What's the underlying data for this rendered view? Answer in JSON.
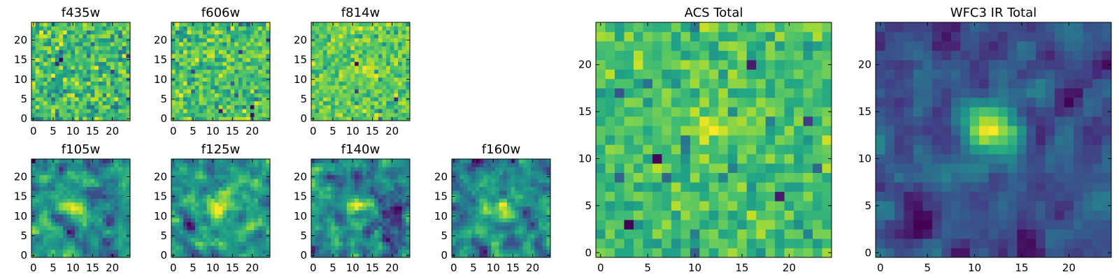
{
  "chart_data": [
    {
      "type": "heatmap",
      "title": "f435w",
      "xticks": [
        0,
        5,
        10,
        15,
        20
      ],
      "yticks": [
        0,
        5,
        10,
        15,
        20
      ],
      "xlim": [
        -0.5,
        24.5
      ],
      "ylim": [
        -0.5,
        24.5
      ],
      "grid_size": 25,
      "colormap": "viridis",
      "source_blob": null,
      "noise": "pixel"
    },
    {
      "type": "heatmap",
      "title": "f606w",
      "xticks": [
        0,
        5,
        10,
        15,
        20
      ],
      "yticks": [
        0,
        5,
        10,
        15,
        20
      ],
      "xlim": [
        -0.5,
        24.5
      ],
      "ylim": [
        -0.5,
        24.5
      ],
      "grid_size": 25,
      "colormap": "viridis",
      "source_blob": null,
      "noise": "pixel"
    },
    {
      "type": "heatmap",
      "title": "f814w",
      "xticks": [
        0,
        5,
        10,
        15,
        20
      ],
      "yticks": [
        0,
        5,
        10,
        15,
        20
      ],
      "xlim": [
        -0.5,
        24.5
      ],
      "ylim": [
        -0.5,
        24.5
      ],
      "grid_size": 25,
      "colormap": "viridis",
      "source_blob": {
        "x": 13,
        "y": 12,
        "sigma": 1.5,
        "amplitude": 1.0
      },
      "noise": "pixel"
    },
    {
      "type": "heatmap",
      "title": "f105w",
      "xticks": [
        0,
        5,
        10,
        15,
        20
      ],
      "yticks": [
        0,
        5,
        10,
        15,
        20
      ],
      "xlim": [
        -0.5,
        24.5
      ],
      "ylim": [
        -0.5,
        24.5
      ],
      "grid_size": 25,
      "colormap": "viridis",
      "source_blob": {
        "x": 12,
        "y": 12,
        "sigma": 2.0,
        "amplitude": 0.5
      },
      "noise": "smooth"
    },
    {
      "type": "heatmap",
      "title": "f125w",
      "xticks": [
        0,
        5,
        10,
        15,
        20
      ],
      "yticks": [
        0,
        5,
        10,
        15,
        20
      ],
      "xlim": [
        -0.5,
        24.5
      ],
      "ylim": [
        -0.5,
        24.5
      ],
      "grid_size": 25,
      "colormap": "viridis",
      "source_blob": {
        "x": 13,
        "y": 12,
        "sigma": 2.0,
        "amplitude": 0.7
      },
      "noise": "smooth"
    },
    {
      "type": "heatmap",
      "title": "f140w",
      "xticks": [
        0,
        5,
        10,
        15,
        20
      ],
      "yticks": [
        0,
        5,
        10,
        15,
        20
      ],
      "xlim": [
        -0.5,
        24.5
      ],
      "ylim": [
        -0.5,
        24.5
      ],
      "grid_size": 25,
      "colormap": "viridis",
      "source_blob": {
        "x": 12,
        "y": 12,
        "sigma": 2.0,
        "amplitude": 0.5
      },
      "noise": "smooth"
    },
    {
      "type": "heatmap",
      "title": "f160w",
      "xticks": [
        0,
        5,
        10,
        15,
        20
      ],
      "yticks": [
        0,
        5,
        10,
        15,
        20
      ],
      "xlim": [
        -0.5,
        24.5
      ],
      "ylim": [
        -0.5,
        24.5
      ],
      "grid_size": 25,
      "colormap": "viridis",
      "source_blob": {
        "x": 13,
        "y": 12,
        "sigma": 2.0,
        "amplitude": 0.5
      },
      "noise": "smooth"
    },
    {
      "type": "heatmap",
      "title": "ACS Total",
      "xticks": [
        0,
        5,
        10,
        15,
        20
      ],
      "yticks": [
        0,
        5,
        10,
        15,
        20
      ],
      "xlim": [
        -0.5,
        24.5
      ],
      "ylim": [
        -0.5,
        24.5
      ],
      "grid_size": 25,
      "colormap": "viridis",
      "source_blob": {
        "x": 12,
        "y": 13,
        "sigma": 1.8,
        "amplitude": 0.8
      },
      "noise": "pixel"
    },
    {
      "type": "heatmap",
      "title": "WFC3 IR Total",
      "xticks": [
        0,
        5,
        10,
        15,
        20
      ],
      "yticks": [
        0,
        5,
        10,
        15,
        20
      ],
      "xlim": [
        -0.5,
        24.5
      ],
      "ylim": [
        -0.5,
        24.5
      ],
      "grid_size": 25,
      "colormap": "viridis",
      "source_blob": {
        "x": 12,
        "y": 13,
        "sigma": 2.0,
        "amplitude": 1.6
      },
      "noise": "smooth"
    }
  ],
  "colors": {
    "viridis_dark": "#440154",
    "viridis_mid": "#21918c",
    "viridis_bright": "#fde725"
  }
}
